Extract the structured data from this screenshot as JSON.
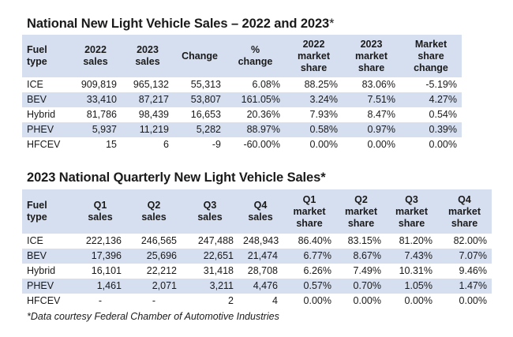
{
  "table1": {
    "title": "National New Light Vehicle Sales – 2022 and 2023",
    "title_asterisk": "*",
    "headers": [
      [
        "Fuel",
        "type"
      ],
      [
        "2022",
        "sales"
      ],
      [
        "2023",
        "sales"
      ],
      [
        "Change"
      ],
      [
        "%",
        "change"
      ],
      [
        "2022",
        "market",
        "share"
      ],
      [
        "2023",
        "market",
        "share"
      ],
      [
        "Market",
        "share",
        "change"
      ]
    ],
    "rows": [
      [
        "ICE",
        "909,819",
        "965,132",
        "55,313",
        "6.08%",
        "88.25%",
        "83.06%",
        "-5.19%"
      ],
      [
        "BEV",
        "33,410",
        "87,217",
        "53,807",
        "161.05%",
        "3.24%",
        "7.51%",
        "4.27%"
      ],
      [
        "Hybrid",
        "81,786",
        "98,439",
        "16,653",
        "20.36%",
        "7.93%",
        "8.47%",
        "0.54%"
      ],
      [
        "PHEV",
        "5,937",
        "11,219",
        "5,282",
        "88.97%",
        "0.58%",
        "0.97%",
        "0.39%"
      ],
      [
        "HFCEV",
        "15",
        "6",
        "-9",
        "-60.00%",
        "0.00%",
        "0.00%",
        "0.00%"
      ]
    ]
  },
  "table2": {
    "title": "2023 National Quarterly New Light Vehicle Sales*",
    "headers": [
      [
        "Fuel",
        "type"
      ],
      [
        "Q1",
        "sales"
      ],
      [
        "Q2",
        "sales"
      ],
      [
        "Q3",
        "sales"
      ],
      [
        "Q4",
        "sales"
      ],
      [
        "Q1",
        "market",
        "share"
      ],
      [
        "Q2",
        "market",
        "share"
      ],
      [
        "Q3",
        "market",
        "share"
      ],
      [
        "Q4",
        "market",
        "share"
      ]
    ],
    "rows": [
      [
        "ICE",
        "222,136",
        "246,565",
        "247,488",
        "248,943",
        "86.40%",
        "83.15%",
        "81.20%",
        "82.00%"
      ],
      [
        "BEV",
        "17,396",
        "25,696",
        "22,651",
        "21,474",
        "6.77%",
        "8.67%",
        "7.43%",
        "7.07%"
      ],
      [
        "Hybrid",
        "16,101",
        "22,212",
        "31,418",
        "28,708",
        "6.26%",
        "7.49%",
        "10.31%",
        "9.46%"
      ],
      [
        "PHEV",
        "1,461",
        "2,071",
        "3,211",
        "4,476",
        "0.57%",
        "0.70%",
        "1.05%",
        "1.47%"
      ],
      [
        "HFCEV",
        "-",
        "-",
        "2",
        "4",
        "0.00%",
        "0.00%",
        "0.00%",
        "0.00%"
      ]
    ]
  },
  "footnote": "*Data courtesy Federal Chamber of Automotive Industries",
  "colors": {
    "header_shade": "#d6dff0",
    "text": "#1a1a1a"
  }
}
